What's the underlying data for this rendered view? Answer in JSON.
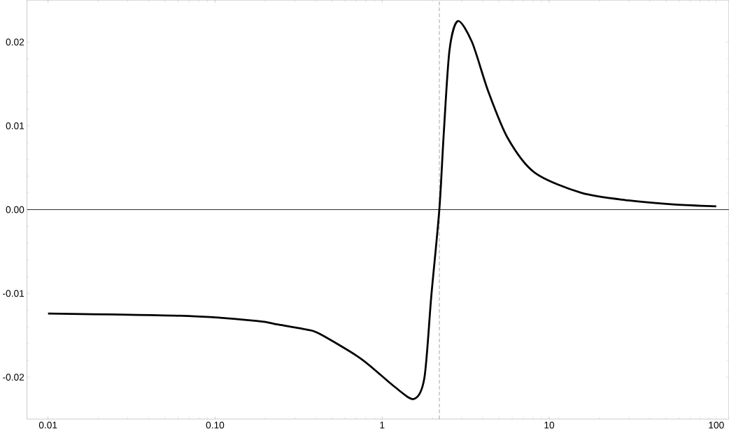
{
  "chart_data": {
    "type": "line",
    "log": "x",
    "xlim": [
      0.00748,
      119
    ],
    "ylim": [
      -0.025,
      0.025
    ],
    "xticks": [
      0.01,
      {
        "value": 0.1,
        "label": "0.10"
      },
      1,
      10,
      100
    ],
    "yticks": [
      {
        "value": -0.02,
        "label": "-0.02"
      },
      {
        "value": -0.01,
        "label": "-0.01"
      },
      {
        "value": 0,
        "label": "0.00"
      },
      0.01,
      0.02
    ],
    "x": [
      0.01,
      0.069,
      0.18,
      0.236,
      0.35,
      0.42,
      0.748,
      1.18,
      1.55,
      1.79,
      1.97,
      2.2,
      2.34,
      2.53,
      2.84,
      3.45,
      4.32,
      5.66,
      8.2,
      15.6,
      29.8,
      57,
      100
    ],
    "series": [
      {
        "color": "#000000",
        "values": [
          -0.0124,
          -0.0127,
          -0.0133,
          -0.0137,
          -0.0143,
          -0.0148,
          -0.0178,
          -0.0211,
          -0.0226,
          -0.0201,
          -0.0103,
          0,
          0.0092,
          0.019,
          0.0225,
          0.02,
          0.0141,
          0.0085,
          0.0044,
          0.002,
          0.0011,
          0.0006,
          0.0004
        ]
      }
    ],
    "ref_lines": [
      {
        "axis": "y",
        "value": 0,
        "color": "#000000",
        "line_style": "solid"
      },
      {
        "axis": "x",
        "value": 2.2,
        "color": "#333333",
        "line_style": "dashed"
      }
    ],
    "grid": false,
    "marker": "none",
    "line_style": "solid"
  }
}
